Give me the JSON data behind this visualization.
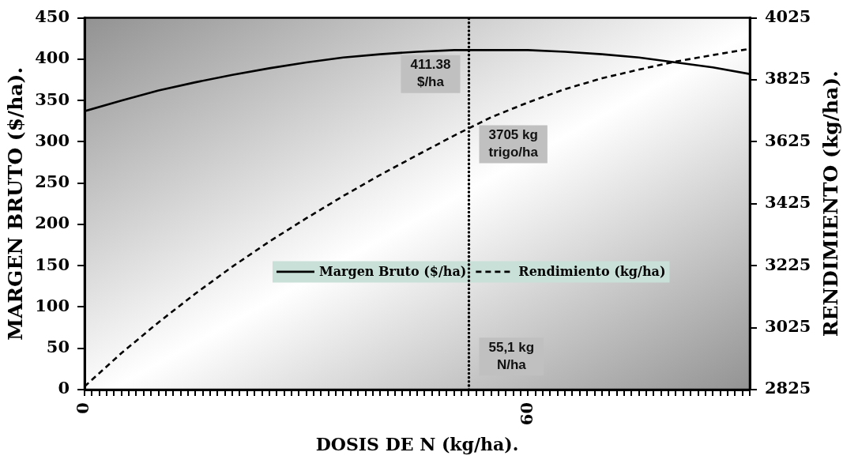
{
  "chart_data": {
    "type": "line",
    "xlabel": "DOSIS DE N (kg/ha).",
    "ylabel": "MARGEN BRUTO ($/ha).",
    "y2label": "RENDIMIENTO (kg/ha).",
    "x": [
      0,
      5,
      10,
      15,
      20,
      25,
      30,
      35,
      40,
      45,
      50,
      55,
      60,
      65,
      70,
      75,
      80,
      85,
      90
    ],
    "series": [
      {
        "name": "Margen Bruto ($/ha)",
        "color": "#000000",
        "line_style": "solid",
        "values": [
          337,
          350,
          362,
          372,
          381,
          389,
          396,
          402,
          406,
          409,
          411,
          411,
          411,
          409,
          406,
          402,
          396,
          390,
          382
        ]
      },
      {
        "name": "Rendimiento (kg/ha)",
        "color": "#000000",
        "line_style": "dashed",
        "axis": "y2",
        "values": [
          2835,
          2943,
          3042,
          3135,
          3222,
          3303,
          3378,
          3450,
          3518,
          3582,
          3645,
          3704,
          3752,
          3795,
          3830,
          3858,
          3884,
          3905,
          3925
        ]
      }
    ],
    "ref_lines": [
      {
        "axis": "x",
        "value": 52,
        "color": "#000000",
        "line_style": "dotted"
      }
    ],
    "xlim": [
      0,
      90
    ],
    "xticks": [
      0,
      {
        "value": 1,
        "label": null
      },
      {
        "value": 2,
        "label": null
      },
      {
        "value": 3,
        "label": null
      },
      {
        "value": 4,
        "label": null
      },
      {
        "value": 5,
        "label": null
      },
      {
        "value": 6,
        "label": null
      },
      {
        "value": 7,
        "label": null
      },
      {
        "value": 8,
        "label": null
      },
      {
        "value": 9,
        "label": null
      },
      {
        "value": 10,
        "label": null
      },
      {
        "value": 11,
        "label": null
      },
      {
        "value": 12,
        "label": null
      },
      {
        "value": 13,
        "label": null
      },
      {
        "value": 14,
        "label": null
      },
      {
        "value": 15,
        "label": null
      },
      {
        "value": 16,
        "label": null
      },
      {
        "value": 17,
        "label": null
      },
      {
        "value": 18,
        "label": null
      },
      {
        "value": 19,
        "label": null
      },
      {
        "value": 20,
        "label": null
      },
      {
        "value": 21,
        "label": null
      },
      {
        "value": 22,
        "label": null
      },
      {
        "value": 23,
        "label": null
      },
      {
        "value": 24,
        "label": null
      },
      {
        "value": 25,
        "label": null
      },
      {
        "value": 26,
        "label": null
      },
      {
        "value": 27,
        "label": null
      },
      {
        "value": 28,
        "label": null
      },
      {
        "value": 29,
        "label": null
      },
      {
        "value": 30,
        "label": null
      },
      {
        "value": 31,
        "label": null
      },
      {
        "value": 32,
        "label": null
      },
      {
        "value": 33,
        "label": null
      },
      {
        "value": 34,
        "label": null
      },
      {
        "value": 35,
        "label": null
      },
      {
        "value": 36,
        "label": null
      },
      {
        "value": 37,
        "label": null
      },
      {
        "value": 38,
        "label": null
      },
      {
        "value": 39,
        "label": null
      },
      {
        "value": 40,
        "label": null
      },
      {
        "value": 41,
        "label": null
      },
      {
        "value": 42,
        "label": null
      },
      {
        "value": 43,
        "label": null
      },
      {
        "value": 44,
        "label": null
      },
      {
        "value": 45,
        "label": null
      },
      {
        "value": 46,
        "label": null
      },
      {
        "value": 47,
        "label": null
      },
      {
        "value": 48,
        "label": null
      },
      {
        "value": 49,
        "label": null
      },
      {
        "value": 50,
        "label": null
      },
      {
        "value": 51,
        "label": null
      },
      {
        "value": 52,
        "label": null
      },
      {
        "value": 53,
        "label": null
      },
      {
        "value": 54,
        "label": null
      },
      {
        "value": 55,
        "label": null
      },
      {
        "value": 56,
        "label": null
      },
      {
        "value": 57,
        "label": null
      },
      {
        "value": 58,
        "label": null
      },
      {
        "value": 59,
        "label": null
      },
      60,
      {
        "value": 61,
        "label": null
      },
      {
        "value": 62,
        "label": null
      },
      {
        "value": 63,
        "label": null
      },
      {
        "value": 64,
        "label": null
      },
      {
        "value": 65,
        "label": null
      },
      {
        "value": 66,
        "label": null
      },
      {
        "value": 67,
        "label": null
      },
      {
        "value": 68,
        "label": null
      },
      {
        "value": 69,
        "label": null
      },
      {
        "value": 70,
        "label": null
      },
      {
        "value": 71,
        "label": null
      },
      {
        "value": 72,
        "label": null
      },
      {
        "value": 73,
        "label": null
      },
      {
        "value": 74,
        "label": null
      },
      {
        "value": 75,
        "label": null
      },
      {
        "value": 76,
        "label": null
      },
      {
        "value": 77,
        "label": null
      },
      {
        "value": 78,
        "label": null
      },
      {
        "value": 79,
        "label": null
      },
      {
        "value": 80,
        "label": null
      },
      {
        "value": 81,
        "label": null
      },
      {
        "value": 82,
        "label": null
      },
      {
        "value": 83,
        "label": null
      },
      {
        "value": 84,
        "label": null
      },
      {
        "value": 85,
        "label": null
      },
      {
        "value": 86,
        "label": null
      },
      {
        "value": 87,
        "label": null
      },
      {
        "value": 88,
        "label": null
      },
      {
        "value": 89,
        "label": null
      },
      {
        "value": 90,
        "label": null
      }
    ],
    "ylim": [
      0,
      450
    ],
    "yticks": [
      0,
      50,
      100,
      150,
      200,
      250,
      300,
      350,
      400,
      450
    ],
    "y2lim": [
      2825,
      4025
    ],
    "y2ticks": [
      2825,
      3025,
      3225,
      3425,
      3625,
      3825,
      4025
    ],
    "legend": "center",
    "annotations": [
      "411.38\n$/ha",
      "3705 kg\ntrigo/ha",
      "55,1 kg\nN/ha"
    ]
  }
}
